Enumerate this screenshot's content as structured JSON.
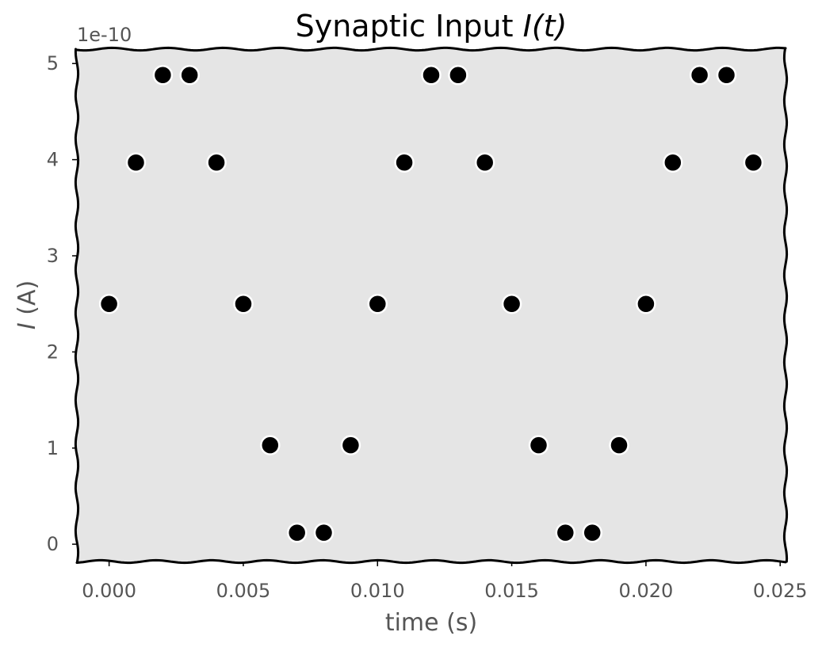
{
  "chart_data": {
    "type": "scatter",
    "title_prefix": "Synaptic Input ",
    "title_var": "I",
    "title_arg": "(t)",
    "xlabel": "time (s)",
    "ylabel_var": "I",
    "ylabel_unit": " (A)",
    "y_offset_label": "1e-10",
    "xlim": [
      -0.0012,
      0.0252
    ],
    "ylim": [
      -0.18,
      5.15
    ],
    "x_ticks": [
      0.0,
      0.005,
      0.01,
      0.015,
      0.02,
      0.025
    ],
    "x_tick_labels": [
      "0.000",
      "0.005",
      "0.010",
      "0.015",
      "0.020",
      "0.025"
    ],
    "y_ticks": [
      0,
      1,
      2,
      3,
      4,
      5
    ],
    "y_tick_labels": [
      "0",
      "1",
      "2",
      "3",
      "4",
      "5"
    ],
    "grid": false,
    "colors": {
      "plot_background": "#e5e5e5",
      "marker_fill": "#000000",
      "marker_edge": "#ffffff",
      "axis_line": "#000000",
      "text": "#555555",
      "title": "#000000"
    },
    "points": [
      {
        "x": 0.0,
        "y": 2.5
      },
      {
        "x": 0.001,
        "y": 3.97
      },
      {
        "x": 0.002,
        "y": 4.88
      },
      {
        "x": 0.003,
        "y": 4.88
      },
      {
        "x": 0.004,
        "y": 3.97
      },
      {
        "x": 0.005,
        "y": 2.5
      },
      {
        "x": 0.006,
        "y": 1.03
      },
      {
        "x": 0.007,
        "y": 0.12
      },
      {
        "x": 0.008,
        "y": 0.12
      },
      {
        "x": 0.009,
        "y": 1.03
      },
      {
        "x": 0.01,
        "y": 2.5
      },
      {
        "x": 0.011,
        "y": 3.97
      },
      {
        "x": 0.012,
        "y": 4.88
      },
      {
        "x": 0.013,
        "y": 4.88
      },
      {
        "x": 0.014,
        "y": 3.97
      },
      {
        "x": 0.015,
        "y": 2.5
      },
      {
        "x": 0.016,
        "y": 1.03
      },
      {
        "x": 0.017,
        "y": 0.12
      },
      {
        "x": 0.018,
        "y": 0.12
      },
      {
        "x": 0.019,
        "y": 1.03
      },
      {
        "x": 0.02,
        "y": 2.5
      },
      {
        "x": 0.021,
        "y": 3.97
      },
      {
        "x": 0.022,
        "y": 4.88
      },
      {
        "x": 0.023,
        "y": 4.88
      },
      {
        "x": 0.024,
        "y": 3.97
      }
    ]
  }
}
